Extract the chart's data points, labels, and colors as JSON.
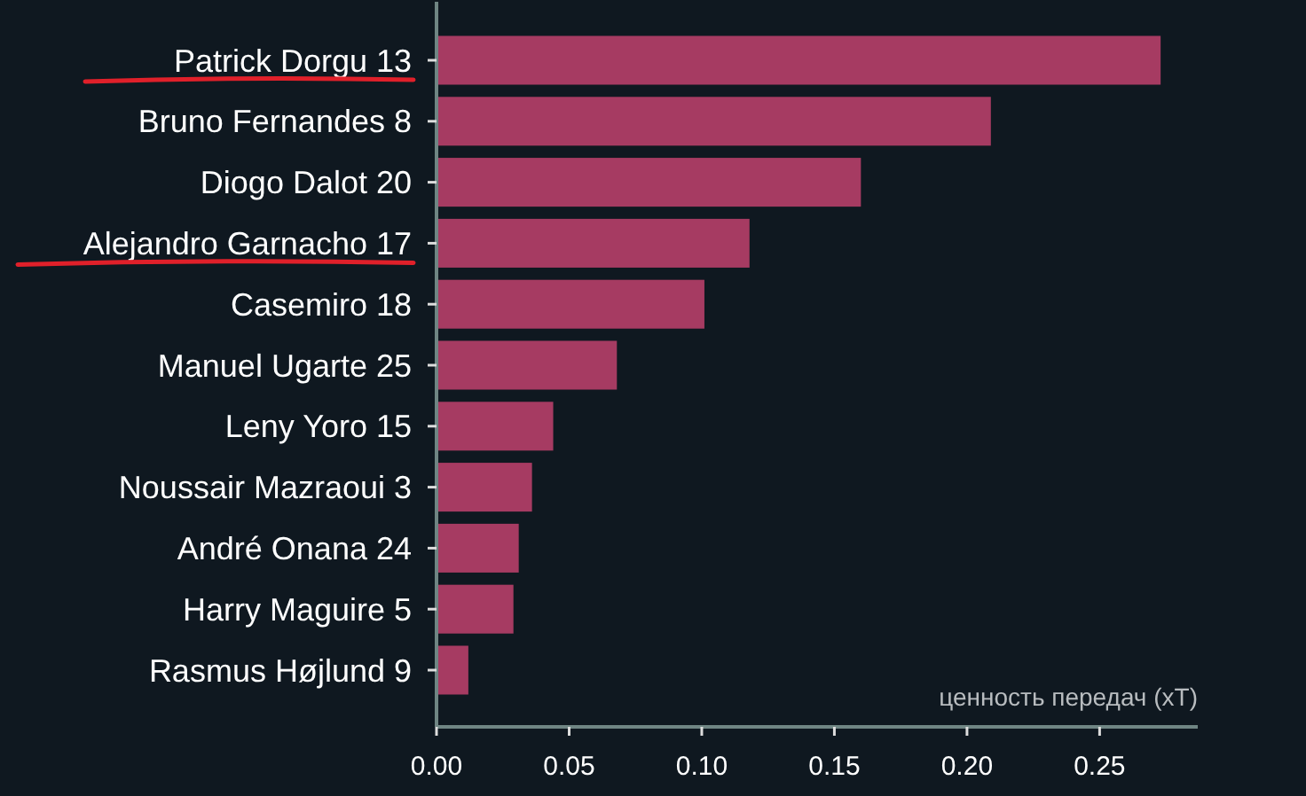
{
  "chart_data": {
    "type": "bar",
    "orientation": "horizontal",
    "xlabel": "ценность передач (xT)",
    "categories": [
      "Patrick Dorgu 13",
      "Bruno Fernandes 8",
      "Diogo Dalot 20",
      "Alejandro Garnacho 17",
      "Casemiro 18",
      "Manuel Ugarte 25",
      "Leny Yoro 15",
      "Noussair Mazraoui 3",
      "André Onana 24",
      "Harry Maguire 5",
      "Rasmus Højlund 9"
    ],
    "values": [
      0.273,
      0.209,
      0.16,
      0.118,
      0.101,
      0.068,
      0.044,
      0.036,
      0.031,
      0.029,
      0.012
    ],
    "color": "#a63b62",
    "xlim": [
      0,
      0.287
    ],
    "xticks": [
      {
        "value": 0,
        "label": "0.00"
      },
      0.05,
      {
        "value": 0.1,
        "label": "0.10"
      },
      0.15,
      {
        "value": 0.2,
        "label": "0.20"
      },
      0.25
    ],
    "grid": false
  }
}
